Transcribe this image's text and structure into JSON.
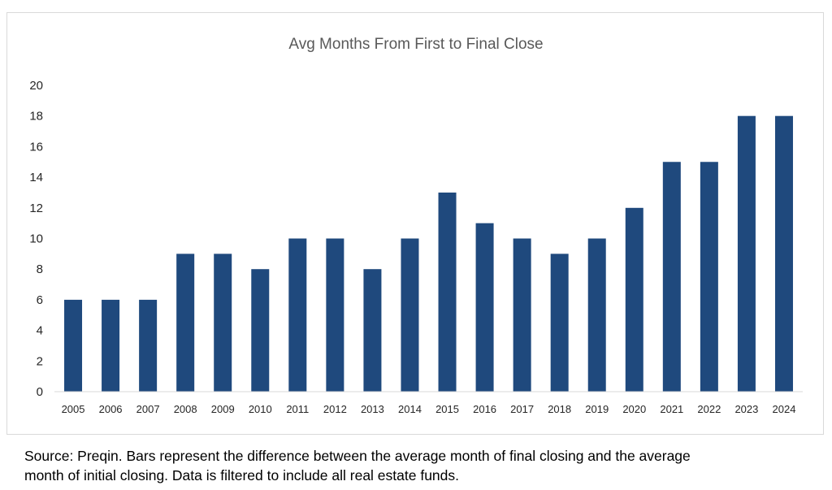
{
  "chart_data": {
    "type": "bar",
    "title": "Avg Months From First to Final Close",
    "xlabel": "",
    "ylabel": "",
    "categories": [
      "2005",
      "2006",
      "2007",
      "2008",
      "2009",
      "2010",
      "2011",
      "2012",
      "2013",
      "2014",
      "2015",
      "2016",
      "2017",
      "2018",
      "2019",
      "2020",
      "2021",
      "2022",
      "2023",
      "2024"
    ],
    "values": [
      6,
      6,
      6,
      9,
      9,
      8,
      10,
      10,
      8,
      10,
      13,
      11,
      10,
      9,
      10,
      12,
      15,
      15,
      18,
      18
    ],
    "ylim": [
      0,
      20
    ],
    "yticks": [
      "0",
      "2",
      "4",
      "6",
      "8",
      "10",
      "12",
      "14",
      "16",
      "18",
      "20"
    ],
    "grid": false,
    "legend": "none",
    "bar_color": "#1f497d",
    "axis_color": "#d9d9d9"
  },
  "footnote": {
    "line1": "Source: Preqin. Bars represent the difference between the average month of final closing and the average",
    "line2": "month of initial closing.  Data is filtered to include all real estate funds."
  }
}
